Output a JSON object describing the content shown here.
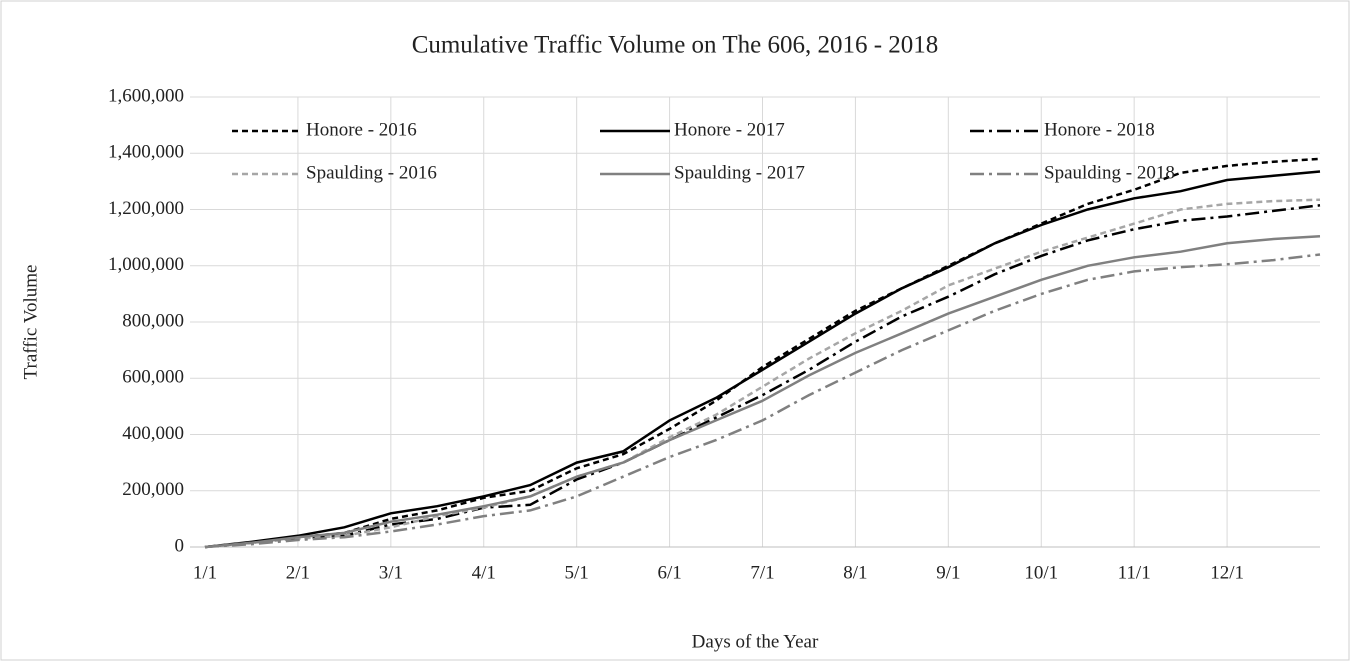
{
  "chart_data": {
    "type": "line",
    "title": "Cumulative Traffic Volume on The 606, 2016 - 2018",
    "x_label": "Days of the Year",
    "y_label": "Traffic Volume",
    "categories": [
      "1/1",
      null,
      "2/1",
      null,
      "3/1",
      null,
      "4/1",
      null,
      "5/1",
      null,
      "6/1",
      null,
      "7/1",
      null,
      "8/1",
      null,
      "9/1",
      null,
      "10/1",
      null,
      "11/1",
      null,
      "12/1",
      null,
      null
    ],
    "ylim": [
      0,
      1600000
    ],
    "yticks": [
      0,
      {
        "value": 200000,
        "label": "200,000"
      },
      {
        "value": 400000,
        "label": "400,000"
      },
      {
        "value": 600000,
        "label": "600,000"
      },
      {
        "value": 800000,
        "label": "800,000"
      },
      {
        "value": 1000000,
        "label": "1,000,000"
      },
      {
        "value": 1200000,
        "label": "1,200,000"
      },
      {
        "value": 1400000,
        "label": "1,400,000"
      },
      {
        "value": 1600000,
        "label": "1,600,000"
      }
    ],
    "grid": true,
    "legend": "top-left",
    "series": [
      {
        "name": "Honore - 2016",
        "color": "#000000",
        "dash": "dashed",
        "values": [
          0,
          15000,
          35000,
          50000,
          100000,
          130000,
          175000,
          200000,
          280000,
          330000,
          420000,
          520000,
          640000,
          740000,
          840000,
          920000,
          1000000,
          1080000,
          1150000,
          1220000,
          1270000,
          1330000,
          1355000,
          1370000,
          1380000
        ]
      },
      {
        "name": "Honore - 2017",
        "color": "#000000",
        "dash": "solid",
        "values": [
          0,
          18000,
          40000,
          70000,
          120000,
          145000,
          180000,
          220000,
          300000,
          340000,
          450000,
          530000,
          630000,
          730000,
          830000,
          920000,
          995000,
          1080000,
          1145000,
          1200000,
          1240000,
          1265000,
          1305000,
          1320000,
          1335000
        ]
      },
      {
        "name": "Honore - 2018",
        "color": "#000000",
        "dash": "dashdot",
        "values": [
          0,
          15000,
          30000,
          40000,
          80000,
          100000,
          140000,
          150000,
          240000,
          300000,
          380000,
          460000,
          540000,
          630000,
          730000,
          820000,
          890000,
          970000,
          1035000,
          1090000,
          1130000,
          1160000,
          1175000,
          1195000,
          1215000
        ]
      },
      {
        "name": "Spaulding - 2016",
        "color": "#a6a6a6",
        "dash": "dashed",
        "values": [
          0,
          15000,
          30000,
          40000,
          70000,
          110000,
          140000,
          180000,
          250000,
          300000,
          390000,
          470000,
          570000,
          670000,
          760000,
          840000,
          930000,
          990000,
          1050000,
          1100000,
          1150000,
          1200000,
          1220000,
          1230000,
          1235000
        ]
      },
      {
        "name": "Spaulding - 2017",
        "color": "#808080",
        "dash": "solid",
        "values": [
          0,
          15000,
          35000,
          50000,
          90000,
          115000,
          145000,
          180000,
          250000,
          300000,
          380000,
          450000,
          520000,
          610000,
          690000,
          760000,
          830000,
          890000,
          950000,
          1000000,
          1030000,
          1050000,
          1080000,
          1095000,
          1105000
        ]
      },
      {
        "name": "Spaulding - 2018",
        "color": "#808080",
        "dash": "dashdot",
        "values": [
          0,
          10000,
          25000,
          35000,
          55000,
          80000,
          110000,
          130000,
          180000,
          250000,
          320000,
          380000,
          450000,
          540000,
          620000,
          700000,
          770000,
          840000,
          900000,
          950000,
          980000,
          995000,
          1005000,
          1020000,
          1040000
        ]
      }
    ]
  }
}
